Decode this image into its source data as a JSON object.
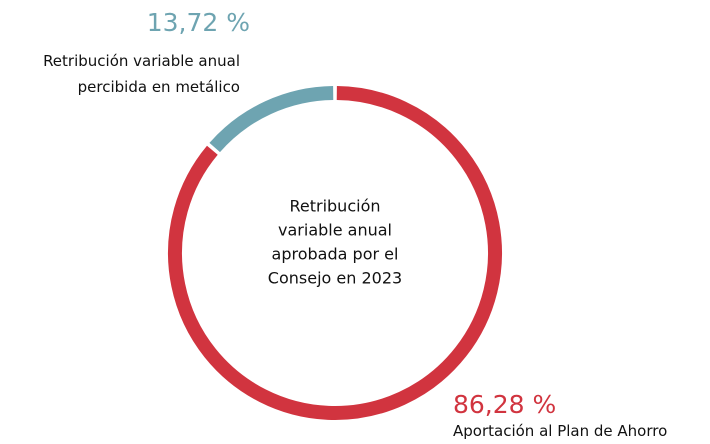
{
  "chart_data": {
    "type": "donut",
    "center_text": [
      "Retribución",
      "variable anual",
      "aprobada por el",
      "Consejo en 2023"
    ],
    "categories": [
      "Aportación al Plan de Ahorro",
      "Retribución variable anual percibida en metálico"
    ],
    "values": [
      86.28,
      13.72
    ],
    "value_labels": [
      "86,28 %",
      "13,72 %"
    ],
    "colors": [
      "#d1343f",
      "#6ea4b1"
    ]
  }
}
